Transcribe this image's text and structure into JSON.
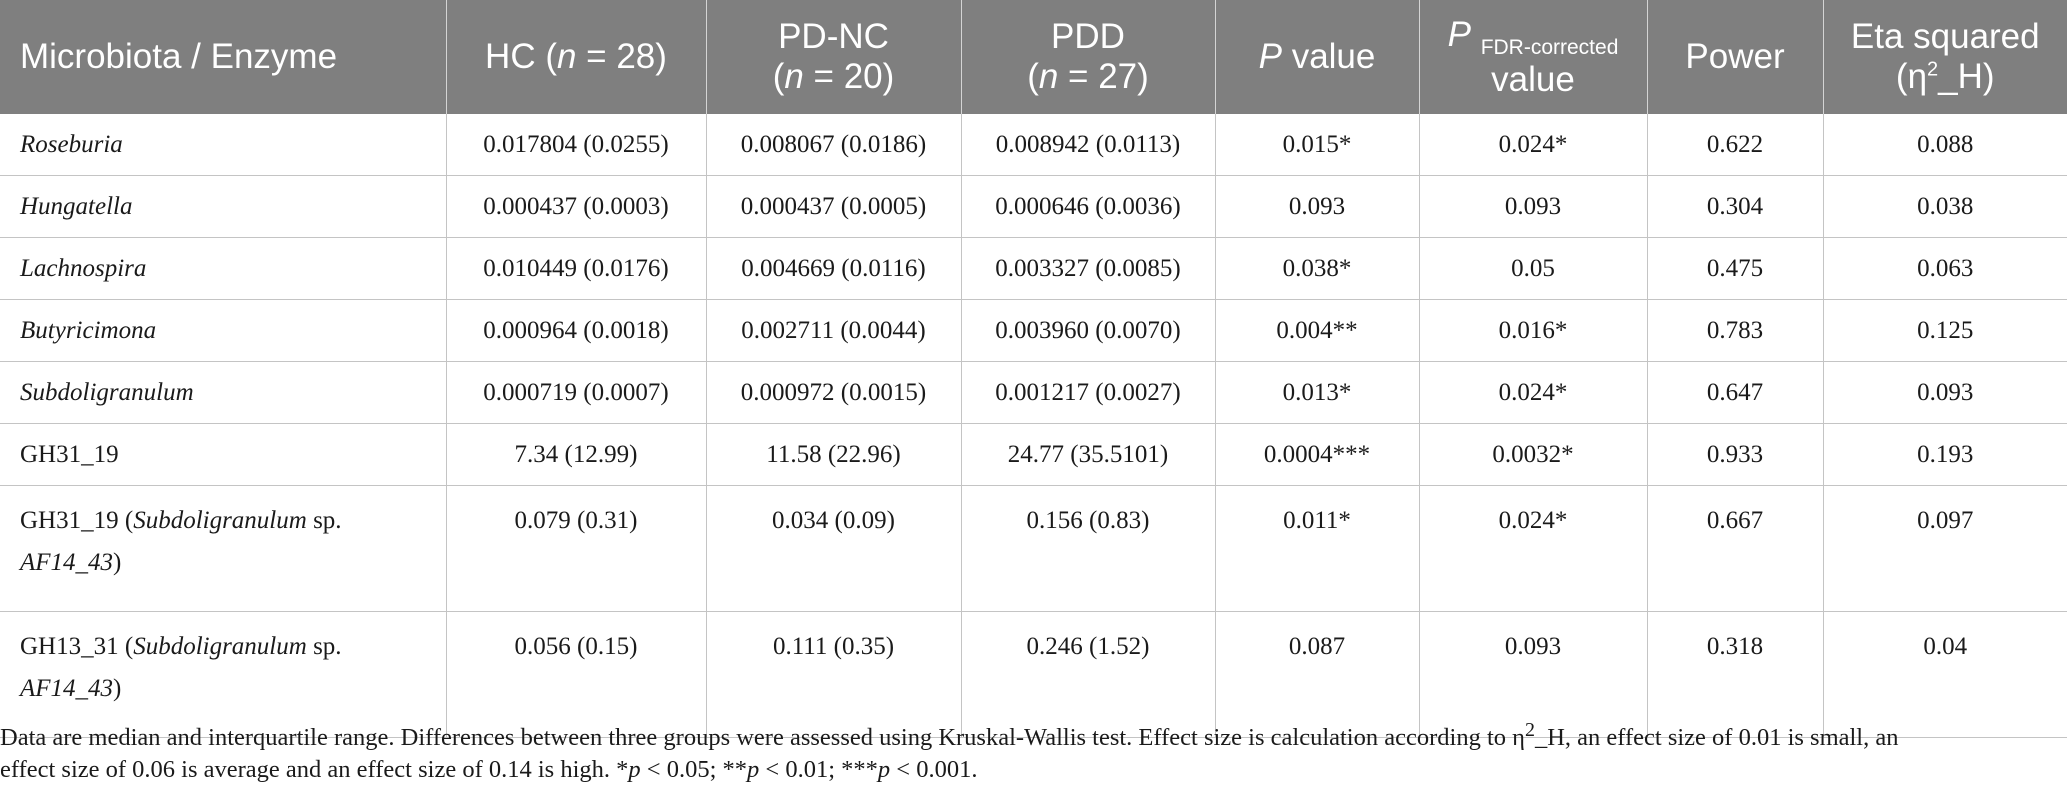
{
  "header": {
    "col0": "Microbiota / Enzyme",
    "col1": {
      "prefix": "HC (",
      "n": "n",
      "suffix": " = 28)"
    },
    "col2": {
      "line1": "PD-NC",
      "open": "(",
      "n": "n",
      "suffix": " = 20)"
    },
    "col3": {
      "line1": "PDD",
      "open": "(",
      "n": "n",
      "suffix": " = 27)"
    },
    "col4": {
      "p": "P",
      "rest": " value"
    },
    "col5": {
      "p": "P",
      "sub": "FDR-corrected",
      "line2": "value"
    },
    "col6": "Power",
    "col7": {
      "line1": "Eta squared",
      "open": "(η",
      "sup": "2",
      "close": "_H)"
    }
  },
  "rows": [
    {
      "name": "Roseburia",
      "hc": "0.017804 (0.0255)",
      "pdnc": "0.008067 (0.0186)",
      "pdd": "0.008942 (0.0113)",
      "p": "0.015*",
      "pfdr": "0.024*",
      "power": "0.622",
      "eta": "0.088"
    },
    {
      "name": "Hungatella",
      "hc": "0.000437 (0.0003)",
      "pdnc": "0.000437 (0.0005)",
      "pdd": "0.000646 (0.0036)",
      "p": "0.093",
      "pfdr": "0.093",
      "power": "0.304",
      "eta": "0.038"
    },
    {
      "name": "Lachnospira",
      "hc": "0.010449 (0.0176)",
      "pdnc": "0.004669 (0.0116)",
      "pdd": "0.003327 (0.0085)",
      "p": "0.038*",
      "pfdr": "0.05",
      "power": "0.475",
      "eta": "0.063"
    },
    {
      "name": "Butyricimona",
      "hc": "0.000964 (0.0018)",
      "pdnc": "0.002711 (0.0044)",
      "pdd": "0.003960 (0.0070)",
      "p": "0.004**",
      "pfdr": "0.016*",
      "power": "0.783",
      "eta": "0.125"
    },
    {
      "name": "Subdoligranulum",
      "hc": "0.000719 (0.0007)",
      "pdnc": "0.000972 (0.0015)",
      "pdd": "0.001217 (0.0027)",
      "p": "0.013*",
      "pfdr": "0.024*",
      "power": "0.647",
      "eta": "0.093"
    },
    {
      "name": "GH31_19",
      "hc": "7.34 (12.99)",
      "pdnc": "11.58 (22.96)",
      "pdd": "24.77 (35.5101)",
      "p": "0.0004***",
      "pfdr": "0.0032*",
      "power": "0.933",
      "eta": "0.193"
    },
    {
      "name_a": "GH31_19 (",
      "name_b": "Subdoligranulum",
      "name_c": " sp.",
      "name_d": "AF14_43",
      "name_e": ")",
      "hc": "0.079 (0.31)",
      "pdnc": "0.034 (0.09)",
      "pdd": "0.156 (0.83)",
      "p": "0.011*",
      "pfdr": "0.024*",
      "power": "0.667",
      "eta": "0.097"
    },
    {
      "name_a": "GH13_31 (",
      "name_b": "Subdoligranulum",
      "name_c": " sp.",
      "name_d": "AF14_43",
      "name_e": ")",
      "hc": "0.056 (0.15)",
      "pdnc": "0.111 (0.35)",
      "pdd": "0.246 (1.52)",
      "p": "0.087",
      "pfdr": "0.093",
      "power": "0.318",
      "eta": "0.04"
    }
  ],
  "footnote": {
    "line1": "Data are median and interquartile range. Differences between three groups were assessed using Kruskal-Wallis test. Effect size is calculation according to η",
    "sup": "2",
    "line1b": "_H, an effect size of 0.01 is small, an",
    "line2a": "effect size of 0.06 is average and an effect size of 0.14 is high. *",
    "p1": "p",
    "t1": " < 0.05; **",
    "p2": "p",
    "t2": " < 0.01; ***",
    "p3": "p",
    "t3": " < 0.001."
  }
}
